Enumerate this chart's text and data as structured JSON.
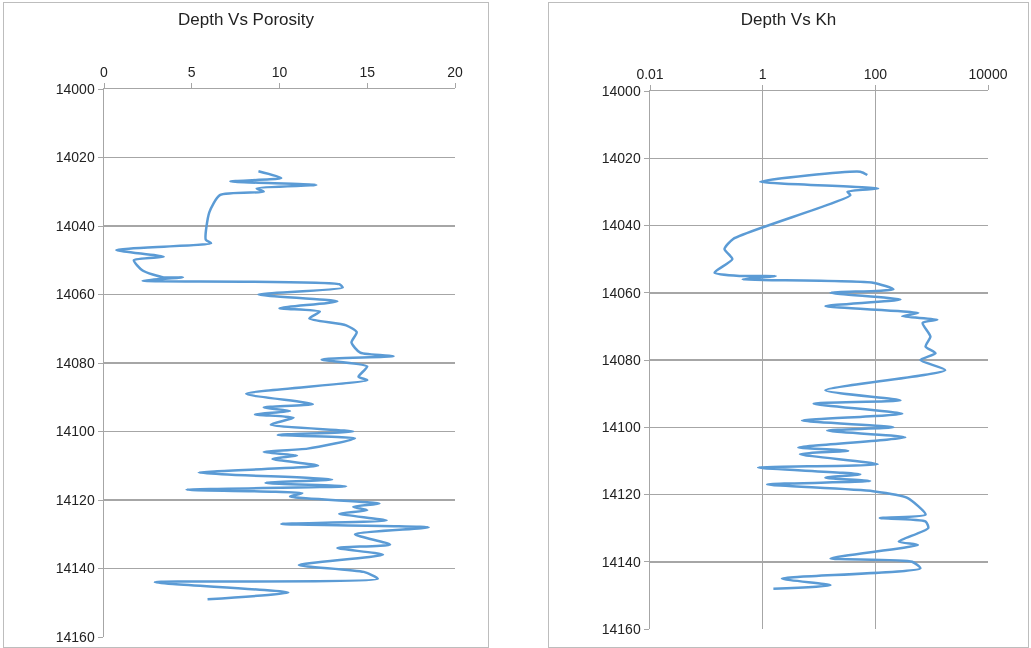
{
  "chart_data": [
    {
      "type": "line",
      "title": "Depth Vs Porosity",
      "xlim": [
        0,
        20
      ],
      "xticks": [
        0,
        5,
        10,
        15,
        20
      ],
      "ylim": [
        14160,
        14000
      ],
      "yticks": [
        14000,
        14020,
        14040,
        14060,
        14080,
        14100,
        14120,
        14140,
        14160
      ],
      "grid": "y",
      "marker": "none",
      "line_style": "solid",
      "series": [
        {
          "color": "#5b9bd5",
          "x": [
            8.8,
            10.1,
            7.2,
            12.1,
            8.7,
            9.1,
            6.6,
            6.0,
            5.8,
            6.1,
            0.7,
            3.4,
            1.7,
            2.2,
            3.4,
            4.5,
            2.2,
            13.4,
            13.6,
            8.8,
            13.3,
            10.0,
            12.3,
            11.7,
            13.8,
            14.4,
            14.1,
            14.6,
            16.5,
            12.4,
            15.0,
            14.5,
            15.0,
            8.1,
            11.9,
            9.1,
            10.6,
            8.6,
            10.8,
            9.5,
            14.2,
            9.9,
            14.3,
            11.6,
            9.1,
            11.0,
            9.6,
            12.2,
            5.4,
            13.0,
            9.2,
            13.8,
            4.7,
            11.3,
            10.6,
            15.7,
            14.2,
            15.0,
            13.4,
            16.1,
            10.1,
            18.5,
            14.3,
            16.3,
            13.3,
            15.9,
            11.1,
            14.8,
            15.6,
            2.9,
            10.5,
            5.9
          ],
          "values": [
            14024,
            14026,
            14027,
            14028,
            14029,
            14030,
            14031,
            14036,
            14044,
            14045,
            14047,
            14049,
            14050,
            14053,
            14055,
            14055,
            14056,
            14057,
            14058,
            14060,
            14062,
            14064,
            14065,
            14067,
            14069,
            14071,
            14074,
            14077,
            14078,
            14079,
            14081,
            14084,
            14085,
            14089,
            14092,
            14093,
            14094,
            14095,
            14096,
            14098,
            14100,
            14101,
            14102,
            14105,
            14106,
            14107,
            14108,
            14110,
            14112,
            14114,
            14115,
            14116,
            14117,
            14118,
            14119,
            14121,
            14122,
            14123,
            14124,
            14126,
            14127,
            14128,
            14130,
            14133,
            14134,
            14136,
            14139,
            14141,
            14143,
            14144,
            14147,
            14149
          ]
        }
      ]
    },
    {
      "type": "line",
      "title": "Depth Vs Kh",
      "log": "x",
      "xlim": [
        0.01,
        10000
      ],
      "xticks": [
        0.01,
        1,
        100,
        10000
      ],
      "ylim": [
        14160,
        14000
      ],
      "yticks": [
        14000,
        14020,
        14040,
        14060,
        14080,
        14100,
        14120,
        14140,
        14160
      ],
      "grid": true,
      "marker": "none",
      "line_style": "solid",
      "series": [
        {
          "color": "#5b9bd5",
          "x": [
            72,
            54,
            0.9,
            112,
            32,
            36,
            0.3,
            0.21,
            0.29,
            0.14,
            0.4,
            1.7,
            0.44,
            91,
            210,
            16,
            280,
            13,
            580,
            300,
            1260,
            690,
            950,
            780,
            1170,
            630,
            1740,
            13,
            280,
            8,
            300,
            5,
            210,
            14,
            340,
            4.3,
            33,
            4.6,
            110,
            0.83,
            54,
            13,
            81,
            1.2,
            91,
            370,
            780,
            120,
            780,
            870,
            260,
            570,
            16,
            450,
            630,
            2.2,
            16,
            1.55
          ],
          "values": [
            14025,
            14024,
            14027,
            14029,
            14030,
            14031,
            14044,
            14047,
            14050,
            14054,
            14055,
            14055,
            14056,
            14057,
            14059,
            14060,
            14062,
            14064,
            14066,
            14067,
            14068,
            14069,
            14073,
            14076,
            14078,
            14080,
            14083,
            14089,
            14092,
            14093,
            14096,
            14098,
            14100,
            14101,
            14103,
            14106,
            14107,
            14108,
            14111,
            14112,
            14114,
            14115,
            14116,
            14117,
            14119,
            14121,
            14126,
            14127,
            14128,
            14130,
            14134,
            14135,
            14139,
            14140,
            14142,
            14145,
            14147,
            14148
          ]
        }
      ]
    }
  ]
}
